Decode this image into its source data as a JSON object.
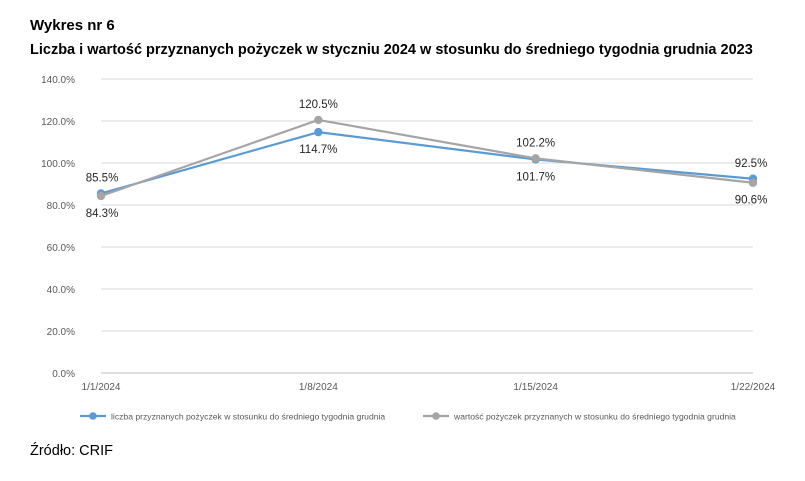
{
  "header": {
    "chart_number": "Wykres nr 6",
    "title": "Liczba i wartość przyznanych pożyczek w styczniu 2024 w stosunku do średniego tygodnia grudnia 2023"
  },
  "source": "Źródło: CRIF",
  "chart_data": {
    "type": "line",
    "x": [
      "1/1/2024",
      "1/8/2024",
      "1/15/2024",
      "1/22/2024"
    ],
    "ylim": [
      0,
      140
    ],
    "yticks": [
      0,
      20,
      40,
      60,
      80,
      100,
      120,
      140
    ],
    "ytick_format": "percent_1dp",
    "grid": true,
    "legend_position": "bottom",
    "series": [
      {
        "name": "liczba przyznanych pożyczek w stosunku do średniego tygodnia grudnia",
        "values": [
          85.5,
          114.7,
          101.7,
          92.5
        ],
        "labels": [
          "85.5%",
          "114.7%",
          "101.7%",
          "92.5%"
        ],
        "color": "#5b9bd5"
      },
      {
        "name": "wartość pożyczek przyznanych w stosunku do średniego tygodnia grudnia",
        "values": [
          84.3,
          120.5,
          102.2,
          90.6
        ],
        "labels": [
          "84.3%",
          "120.5%",
          "102.2%",
          "90.6%"
        ],
        "color": "#a5a5a5"
      }
    ]
  }
}
